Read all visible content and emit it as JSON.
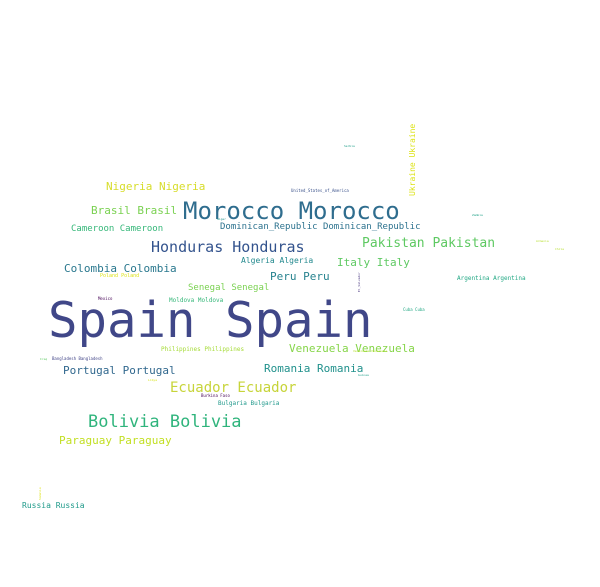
{
  "words": [
    {
      "text": "Spain Spain",
      "color": "#404788"
    },
    {
      "text": "Morocco Morocco",
      "color": "#2f6d8e"
    },
    {
      "text": "Bolivia Bolivia",
      "color": "#2fb47c"
    },
    {
      "text": "Honduras Honduras",
      "color": "#33538d"
    },
    {
      "text": "Ecuador Ecuador",
      "color": "#c7d43a"
    },
    {
      "text": "Pakistan Pakistan",
      "color": "#5ec962"
    },
    {
      "text": "Nigeria Nigeria",
      "color": "#d7dd2a"
    },
    {
      "text": "Brasil Brasil",
      "color": "#7ad151"
    },
    {
      "text": "Colombia Colombia",
      "color": "#2a788e"
    },
    {
      "text": "Italy Italy",
      "color": "#5ec962"
    },
    {
      "text": "Peru Peru",
      "color": "#26828e"
    },
    {
      "text": "Romania Romania",
      "color": "#21918c"
    },
    {
      "text": "Portugal Portugal",
      "color": "#31688e"
    },
    {
      "text": "Venezuela Venezuela",
      "color": "#86d549"
    },
    {
      "text": "Paraguay Paraguay",
      "color": "#c2df23"
    },
    {
      "text": "Cameroon Cameroon",
      "color": "#35b779"
    },
    {
      "text": "Dominican_Republic Dominican_Republic",
      "color": "#2c728e"
    },
    {
      "text": "Algeria Algeria",
      "color": "#23898e"
    },
    {
      "text": "Senegal Senegal",
      "color": "#7ad151"
    },
    {
      "text": "Ukraine Ukraine",
      "color": "#dde318"
    },
    {
      "text": "Russia Russia",
      "color": "#1f9a8a"
    },
    {
      "text": "Argentina Argentina",
      "color": "#22a884"
    },
    {
      "text": "Moldova Moldova",
      "color": "#35b779"
    },
    {
      "text": "Bulgaria Bulgaria",
      "color": "#1f988b"
    },
    {
      "text": "Philippines Philippines",
      "color": "#a5db36"
    },
    {
      "text": "Bangladesh Bangladesh",
      "color": "#414487"
    },
    {
      "text": "Poland Poland",
      "color": "#dde318"
    },
    {
      "text": "United_States_of_America",
      "color": "#3b528b"
    },
    {
      "text": "Cuba Cuba",
      "color": "#22a884"
    },
    {
      "text": "Burkina Faso",
      "color": "#440154"
    },
    {
      "text": "Mexico",
      "color": "#440154"
    },
    {
      "text": "Serbia",
      "color": "#1f9e89"
    },
    {
      "text": "Zambia",
      "color": "#1fa187"
    },
    {
      "text": "Armenia",
      "color": "#b5de2b"
    },
    {
      "text": "Guinea",
      "color": "#1f9e89"
    },
    {
      "text": "El_Salvador",
      "color": "#46337e"
    },
    {
      "text": "Somalia",
      "color": "#dde318"
    },
    {
      "text": "Venezuela Venezuela",
      "color": "#b5de2b"
    },
    {
      "text": "Iraq",
      "color": "#5ec962"
    },
    {
      "text": "Libya",
      "color": "#d7e219"
    },
    {
      "text": "Niger",
      "color": "#21918c"
    },
    {
      "text": "Chile",
      "color": "#b5de2b"
    }
  ]
}
